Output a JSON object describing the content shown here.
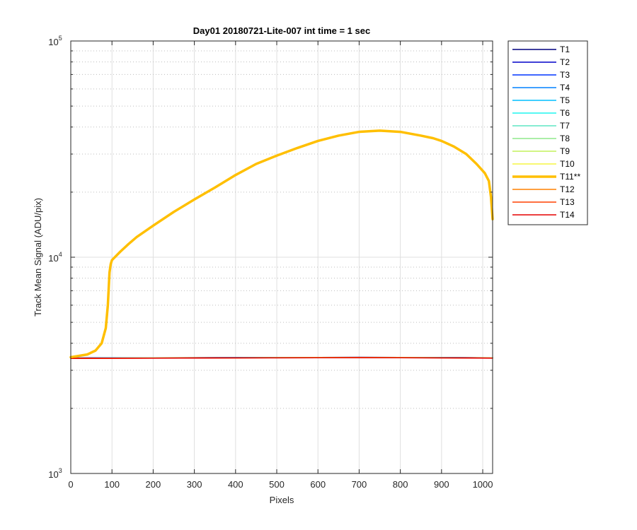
{
  "chart_data": {
    "type": "line",
    "title": "Day01 20180721-Lite-007 int time = 1 sec",
    "xlabel": "Pixels",
    "ylabel": "Track Mean Signal (ADU/pix)",
    "xlim": [
      0,
      1024
    ],
    "ylim": [
      1000,
      100000
    ],
    "yscale": "log",
    "x_ticks": [
      0,
      100,
      200,
      300,
      400,
      500,
      600,
      700,
      800,
      900,
      1000
    ],
    "x_tick_labels": [
      "0",
      "100",
      "200",
      "300",
      "400",
      "500",
      "600",
      "700",
      "800",
      "900",
      "1000"
    ],
    "y_ticks": [
      {
        "value": 1000,
        "base": "10",
        "exponent": "3"
      },
      {
        "value": 10000,
        "base": "10",
        "exponent": "4"
      },
      {
        "value": 100000,
        "base": "10",
        "exponent": "5"
      }
    ],
    "grid": true,
    "minor_grid": true,
    "legend_position": "outside-right",
    "series": [
      {
        "name": "T1",
        "color": "#00007f",
        "x": [
          0,
          100,
          200,
          300,
          400,
          500,
          600,
          700,
          800,
          900,
          1024
        ],
        "y": [
          3420,
          3425,
          3428,
          3432,
          3436,
          3440,
          3443,
          3445,
          3443,
          3438,
          3430
        ]
      },
      {
        "name": "T2",
        "color": "#0000c8",
        "x": [
          0,
          100,
          200,
          300,
          400,
          500,
          600,
          700,
          800,
          900,
          1024
        ],
        "y": [
          3418,
          3424,
          3427,
          3431,
          3435,
          3439,
          3442,
          3444,
          3442,
          3437,
          3428
        ]
      },
      {
        "name": "T3",
        "color": "#0033ff",
        "x": [
          0,
          100,
          200,
          300,
          400,
          500,
          600,
          700,
          800,
          900,
          1024
        ],
        "y": [
          3416,
          3422,
          3426,
          3430,
          3434,
          3438,
          3441,
          3443,
          3441,
          3436,
          3427
        ]
      },
      {
        "name": "T4",
        "color": "#0080ff",
        "x": [
          0,
          100,
          200,
          300,
          400,
          500,
          600,
          700,
          800,
          900,
          1024
        ],
        "y": [
          3415,
          3421,
          3425,
          3429,
          3433,
          3437,
          3440,
          3442,
          3440,
          3435,
          3426
        ]
      },
      {
        "name": "T5",
        "color": "#00bfff",
        "x": [
          0,
          100,
          200,
          300,
          400,
          500,
          600,
          700,
          800,
          900,
          1024
        ],
        "y": [
          3414,
          3420,
          3424,
          3428,
          3432,
          3436,
          3439,
          3441,
          3439,
          3434,
          3425
        ]
      },
      {
        "name": "T6",
        "color": "#1ff5ef",
        "x": [
          0,
          100,
          200,
          300,
          400,
          500,
          600,
          700,
          800,
          900,
          1024
        ],
        "y": [
          3413,
          3419,
          3423,
          3427,
          3431,
          3435,
          3438,
          3440,
          3438,
          3433,
          3424
        ]
      },
      {
        "name": "T7",
        "color": "#5fe6c4",
        "x": [
          0,
          100,
          200,
          300,
          400,
          500,
          600,
          700,
          800,
          900,
          1024
        ],
        "y": [
          3412,
          3418,
          3422,
          3426,
          3430,
          3434,
          3437,
          3439,
          3437,
          3432,
          3423
        ]
      },
      {
        "name": "T8",
        "color": "#8fe88b",
        "x": [
          0,
          100,
          200,
          300,
          400,
          500,
          600,
          700,
          800,
          900,
          1024
        ],
        "y": [
          3411,
          3417,
          3421,
          3425,
          3429,
          3433,
          3436,
          3438,
          3436,
          3431,
          3422
        ]
      },
      {
        "name": "T9",
        "color": "#c3f25c",
        "x": [
          0,
          100,
          200,
          300,
          400,
          500,
          600,
          700,
          800,
          900,
          1024
        ],
        "y": [
          3410,
          3416,
          3420,
          3424,
          3428,
          3432,
          3435,
          3437,
          3435,
          3430,
          3421
        ]
      },
      {
        "name": "T10",
        "color": "#f5f542",
        "x": [
          0,
          100,
          200,
          300,
          400,
          500,
          600,
          700,
          800,
          900,
          1024
        ],
        "y": [
          3409,
          3415,
          3419,
          3423,
          3427,
          3431,
          3434,
          3436,
          3434,
          3429,
          3420
        ]
      },
      {
        "name": "T11**",
        "color": "#ffbf00",
        "width": 3.5,
        "x": [
          0,
          40,
          60,
          75,
          85,
          90,
          94,
          97,
          100,
          120,
          140,
          160,
          200,
          250,
          300,
          350,
          400,
          450,
          500,
          550,
          600,
          650,
          700,
          750,
          800,
          850,
          880,
          900,
          930,
          960,
          985,
          1005,
          1015,
          1020,
          1024
        ],
        "y": [
          3450,
          3550,
          3700,
          4000,
          4700,
          6000,
          8500,
          9300,
          9700,
          10600,
          11500,
          12400,
          14000,
          16200,
          18500,
          21000,
          24000,
          27000,
          29500,
          32000,
          34500,
          36500,
          38000,
          38500,
          38000,
          36500,
          35500,
          34500,
          32500,
          30000,
          27000,
          24500,
          22500,
          19000,
          15000
        ]
      },
      {
        "name": "T12",
        "color": "#ff8000",
        "x": [
          0,
          100,
          200,
          300,
          400,
          500,
          600,
          700,
          800,
          900,
          1024
        ],
        "y": [
          3407,
          3413,
          3417,
          3421,
          3425,
          3429,
          3432,
          3434,
          3432,
          3427,
          3418
        ]
      },
      {
        "name": "T13",
        "color": "#ff4000",
        "x": [
          0,
          100,
          200,
          300,
          400,
          500,
          600,
          700,
          800,
          900,
          1024
        ],
        "y": [
          3405,
          3411,
          3415,
          3419,
          3423,
          3427,
          3430,
          3432,
          3430,
          3425,
          3416
        ]
      },
      {
        "name": "T14",
        "color": "#e60000",
        "x": [
          0,
          100,
          200,
          300,
          400,
          500,
          600,
          700,
          800,
          900,
          1024
        ],
        "y": [
          3403,
          3409,
          3413,
          3417,
          3421,
          3425,
          3428,
          3430,
          3428,
          3423,
          3414
        ]
      }
    ]
  }
}
